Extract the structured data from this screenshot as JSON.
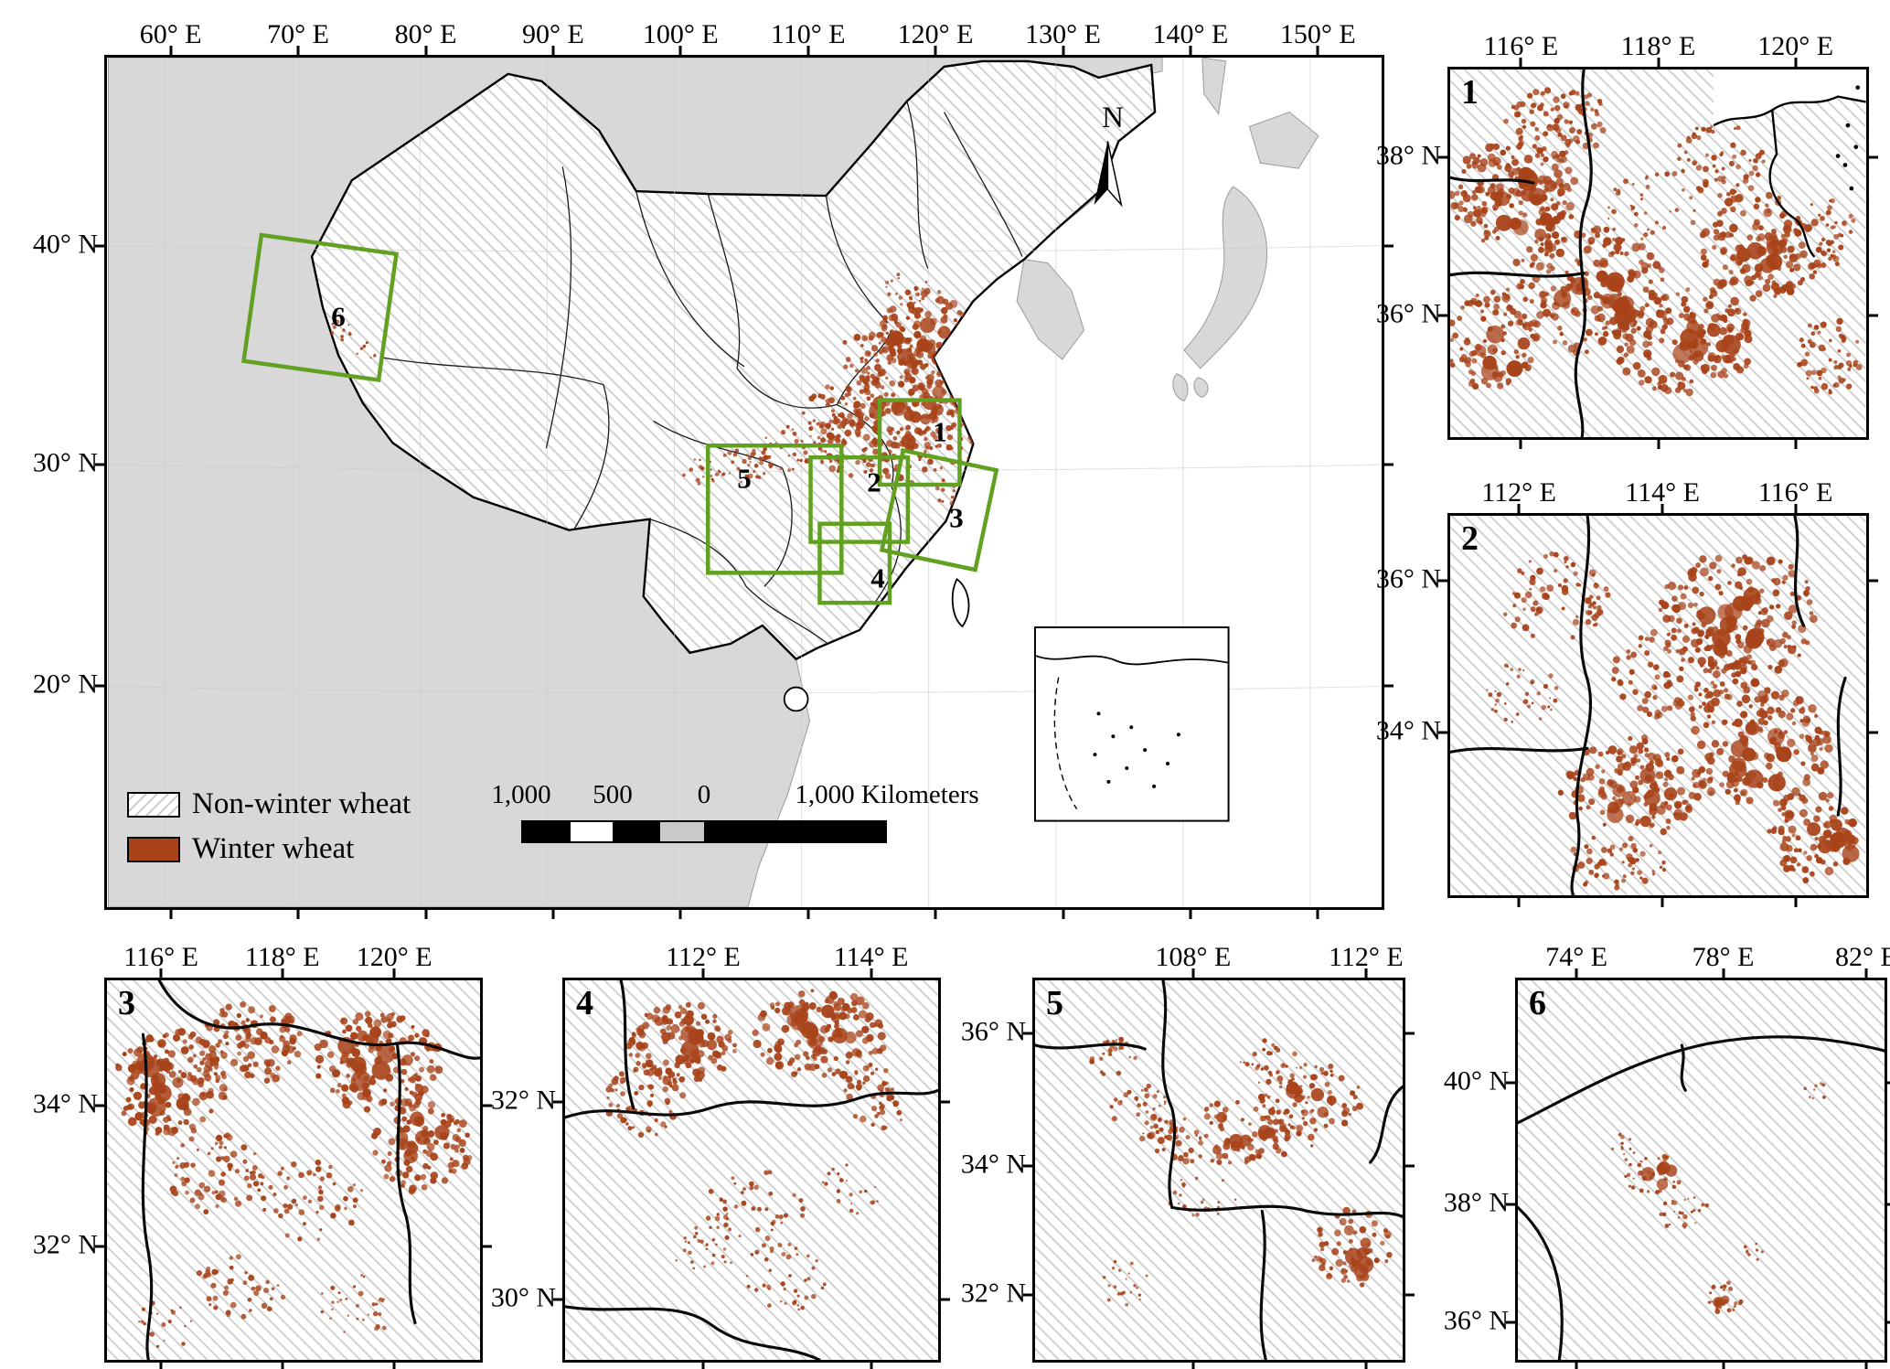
{
  "colors": {
    "winter_wheat": "#A8431A",
    "region_box": "#61A021",
    "other_land": "#D8D8D8"
  },
  "figure": {
    "north_label": "N",
    "legend": {
      "non_winter": "Non-winter wheat",
      "winter": "Winter wheat"
    },
    "scalebar": {
      "labels": [
        "1,000",
        "500",
        "0",
        "1,000 Kilometers"
      ]
    }
  },
  "main_map": {
    "top_ticks": [
      "60° E",
      "70° E",
      "80° E",
      "90° E",
      "100° E",
      "110° E",
      "120° E",
      "130° E",
      "140° E",
      "150° E"
    ],
    "left_ticks": [
      "40° N",
      "30° N",
      "20° N"
    ],
    "region_labels": [
      "1",
      "2",
      "3",
      "4",
      "5",
      "6"
    ]
  },
  "insets": [
    {
      "number": "1",
      "top_ticks": [
        "116° E",
        "118° E",
        "120° E"
      ],
      "left_ticks": [
        "38° N",
        "36° N"
      ]
    },
    {
      "number": "2",
      "top_ticks": [
        "112° E",
        "114° E",
        "116° E"
      ],
      "left_ticks": [
        "36° N",
        "34° N"
      ]
    },
    {
      "number": "3",
      "top_ticks": [
        "116° E",
        "118° E",
        "120° E"
      ],
      "left_ticks": [
        "34° N",
        "32° N"
      ]
    },
    {
      "number": "4",
      "top_ticks": [
        "112° E",
        "114° E"
      ],
      "left_ticks": [
        "32° N",
        "30° N"
      ]
    },
    {
      "number": "5",
      "top_ticks": [
        "108° E",
        "112° E"
      ],
      "left_ticks": [
        "36° N",
        "34° N",
        "32° N"
      ]
    },
    {
      "number": "6",
      "top_ticks": [
        "74° E",
        "78° E",
        "82° E"
      ],
      "left_ticks": [
        "40° N",
        "38° N",
        "36° N"
      ]
    }
  ]
}
